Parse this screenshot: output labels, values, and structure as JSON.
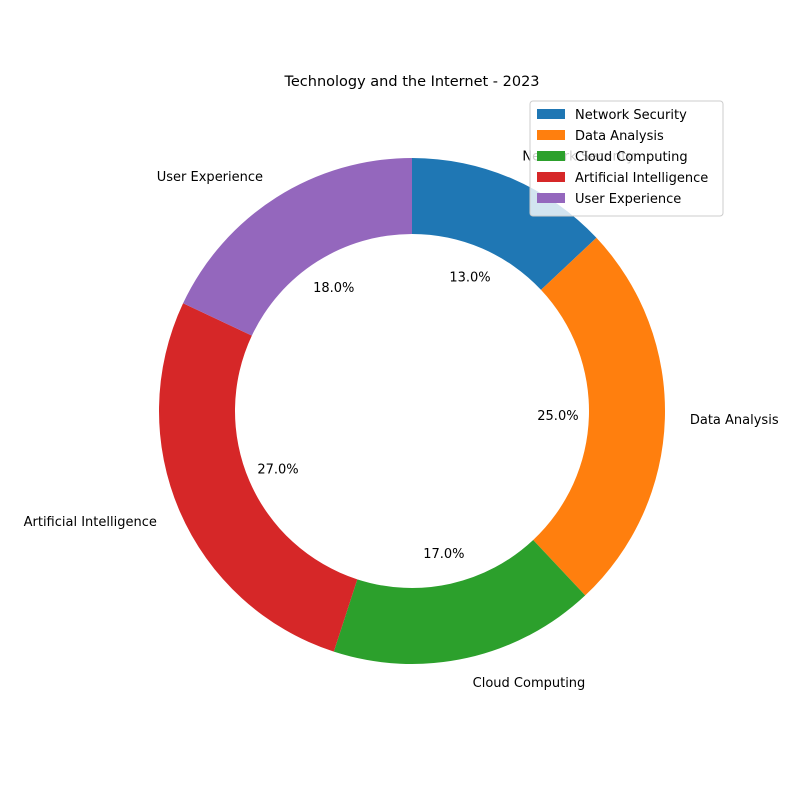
{
  "chart_data": {
    "type": "pie",
    "style": "donut",
    "title": "Technology and the Internet - 2023",
    "categories": [
      "Network Security",
      "Data Analysis",
      "Cloud Computing",
      "Artificial Intelligence",
      "User Experience"
    ],
    "values": [
      13.0,
      25.0,
      17.0,
      27.0,
      18.0
    ],
    "value_labels": [
      "13.0%",
      "25.0%",
      "17.0%",
      "27.0%",
      "18.0%"
    ],
    "colors": [
      "#1f77b4",
      "#ff7f0e",
      "#2ca02c",
      "#d62728",
      "#9467bd"
    ],
    "direction": "clockwise",
    "start_angle_deg": 90,
    "legend": {
      "position": "top-right",
      "entries": [
        "Network Security",
        "Data Analysis",
        "Cloud Computing",
        "Artificial Intelligence",
        "User Experience"
      ]
    }
  }
}
